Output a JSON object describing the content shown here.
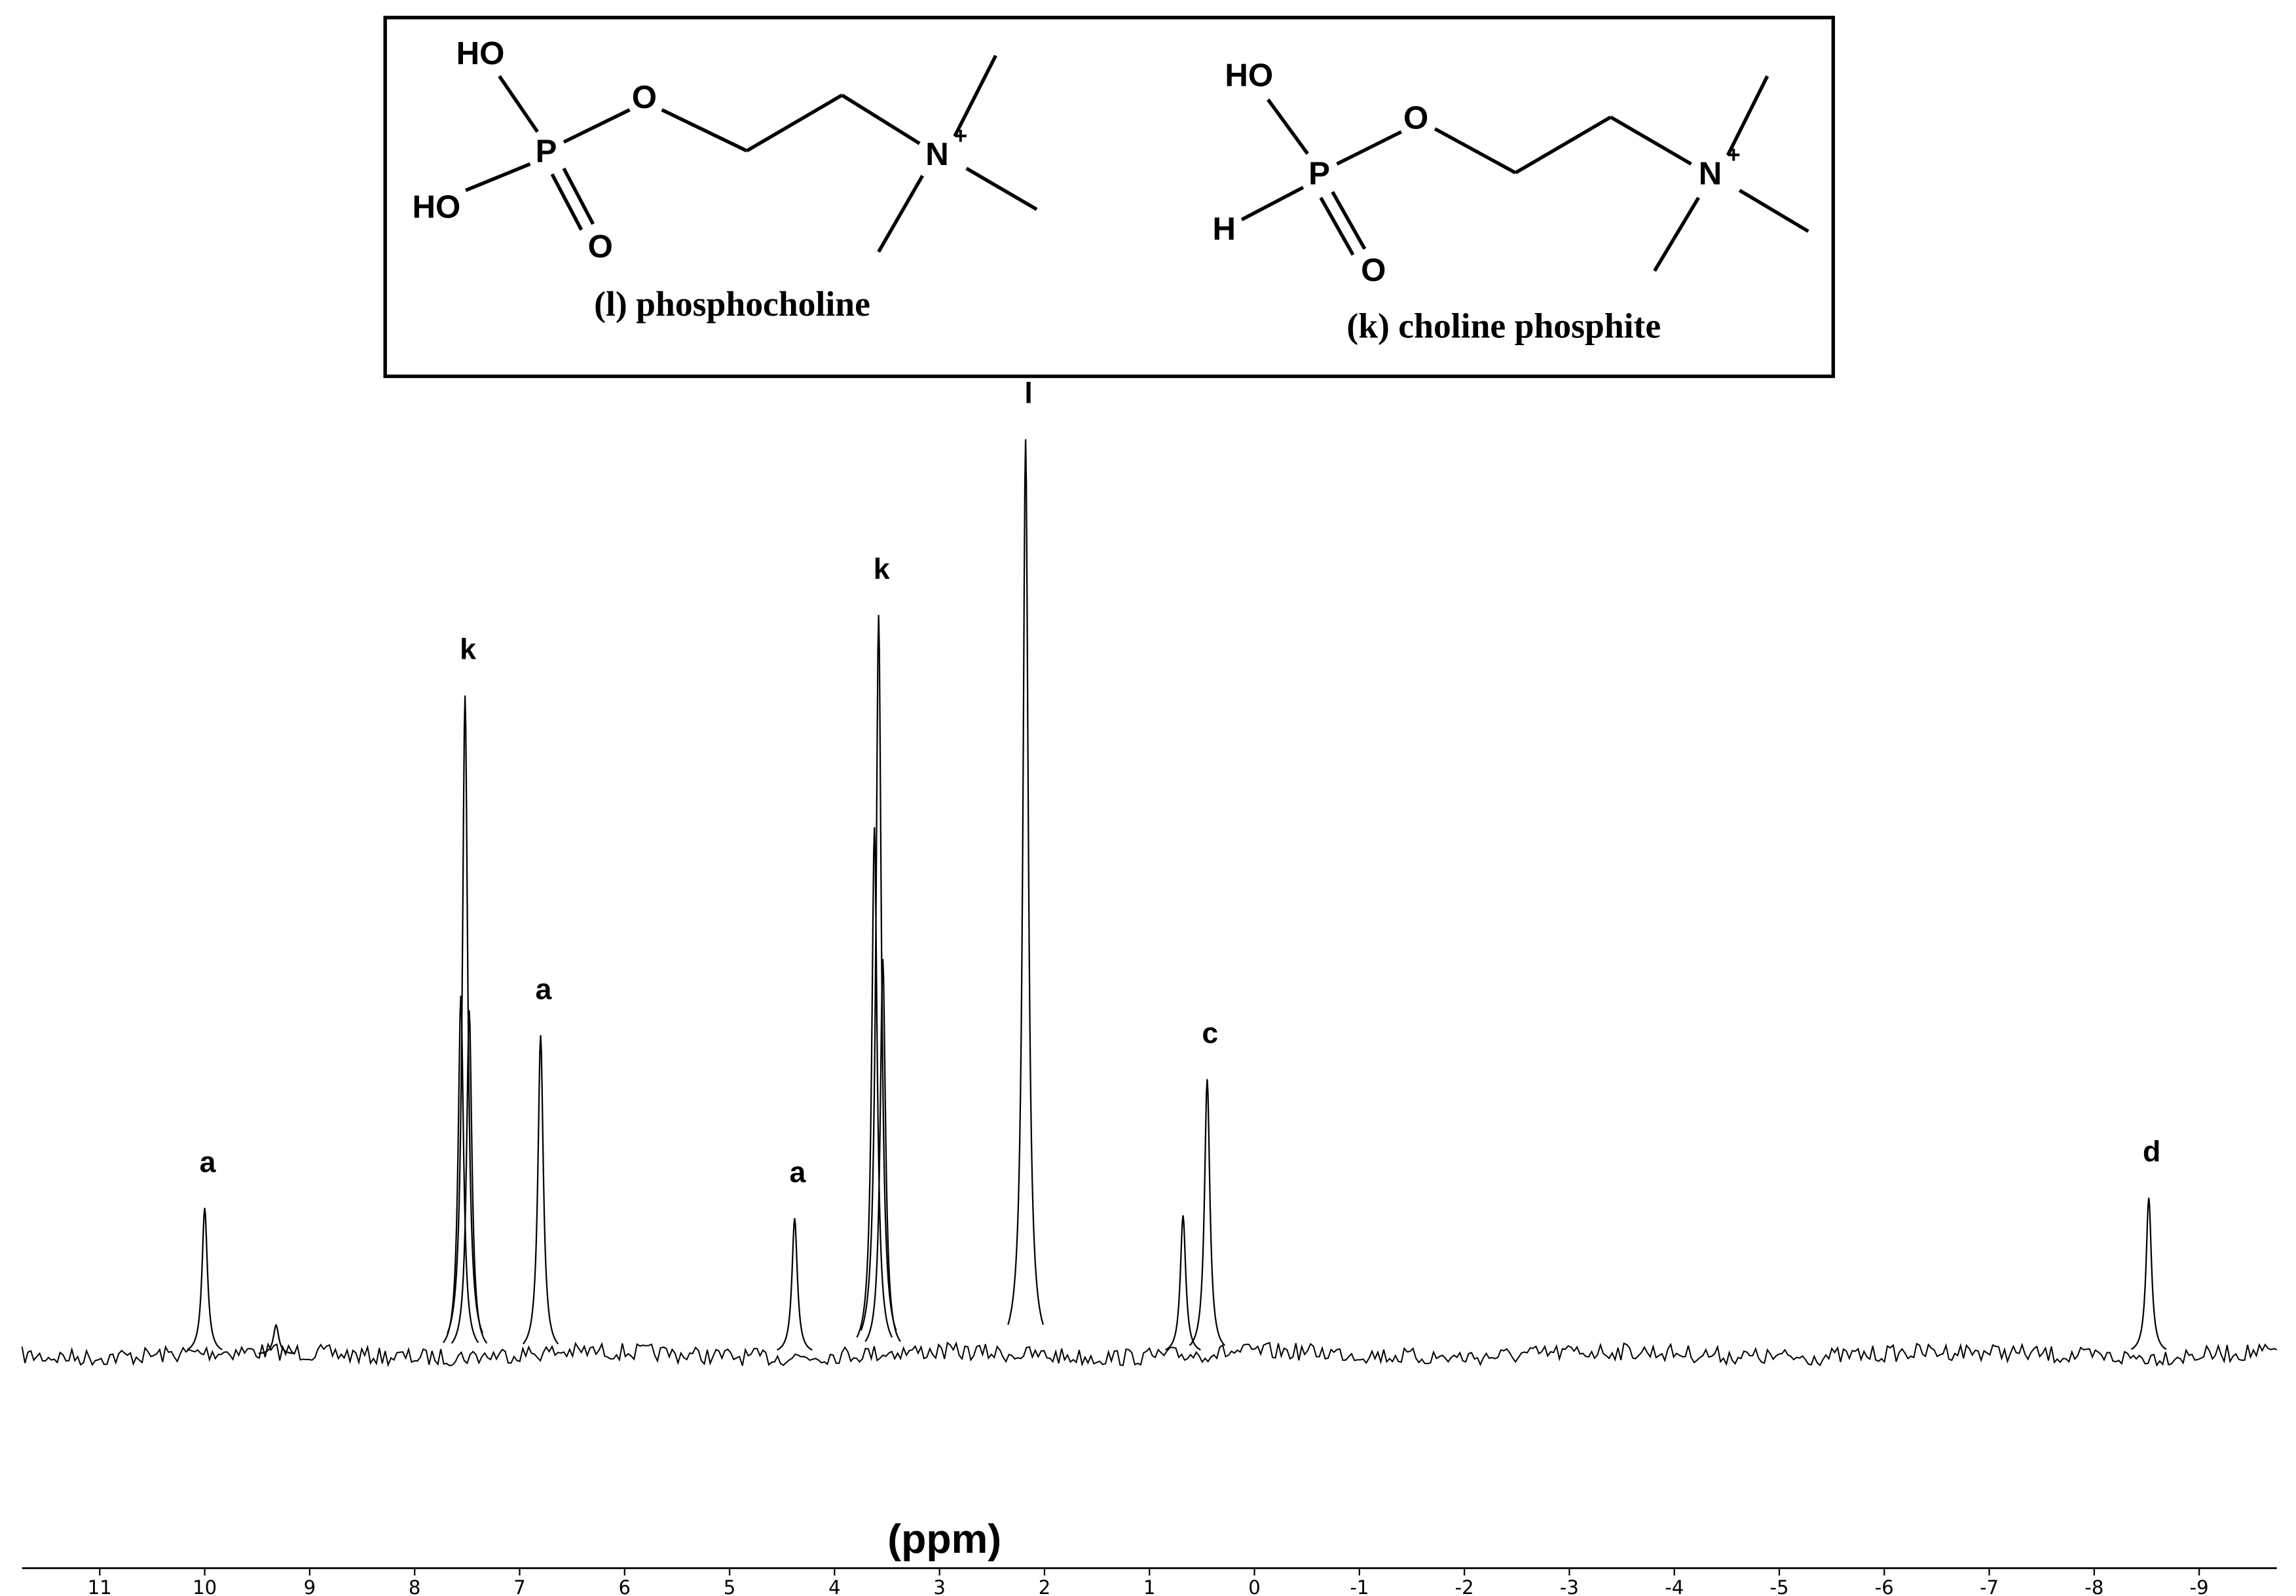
{
  "structures": [
    {
      "name": "(l) phosphocholine",
      "atoms": [
        "HO",
        "HO",
        "P",
        "O",
        "O",
        "N",
        "+"
      ]
    },
    {
      "name": "(k) choline phosphite",
      "atoms": [
        "HO",
        "H",
        "P",
        "O",
        "O",
        "N",
        "+"
      ]
    }
  ],
  "chart_data": {
    "type": "spectrum",
    "xlabel": "(ppm)",
    "color": "#000000",
    "xlim": [
      11.74,
      -9.74
    ],
    "xticks": [
      11,
      10,
      9,
      8,
      7,
      6,
      5,
      4,
      3,
      2,
      1,
      0,
      -1,
      -2,
      -3,
      -4,
      -5,
      -6,
      -7,
      -8,
      -9
    ],
    "ylim": [
      0,
      640
    ],
    "x": [
      10.0,
      9.32,
      7.56,
      7.52,
      7.48,
      6.8,
      4.38,
      3.62,
      3.58,
      3.54,
      2.18,
      0.68,
      0.45,
      -8.52
    ],
    "values": [
      100,
      20,
      245,
      450,
      235,
      218,
      93,
      360,
      505,
      270,
      625,
      95,
      188,
      107
    ],
    "peak_labels": [
      "a",
      null,
      null,
      "k",
      null,
      "a",
      "a",
      null,
      "k",
      null,
      "l",
      null,
      "c",
      "d"
    ]
  }
}
